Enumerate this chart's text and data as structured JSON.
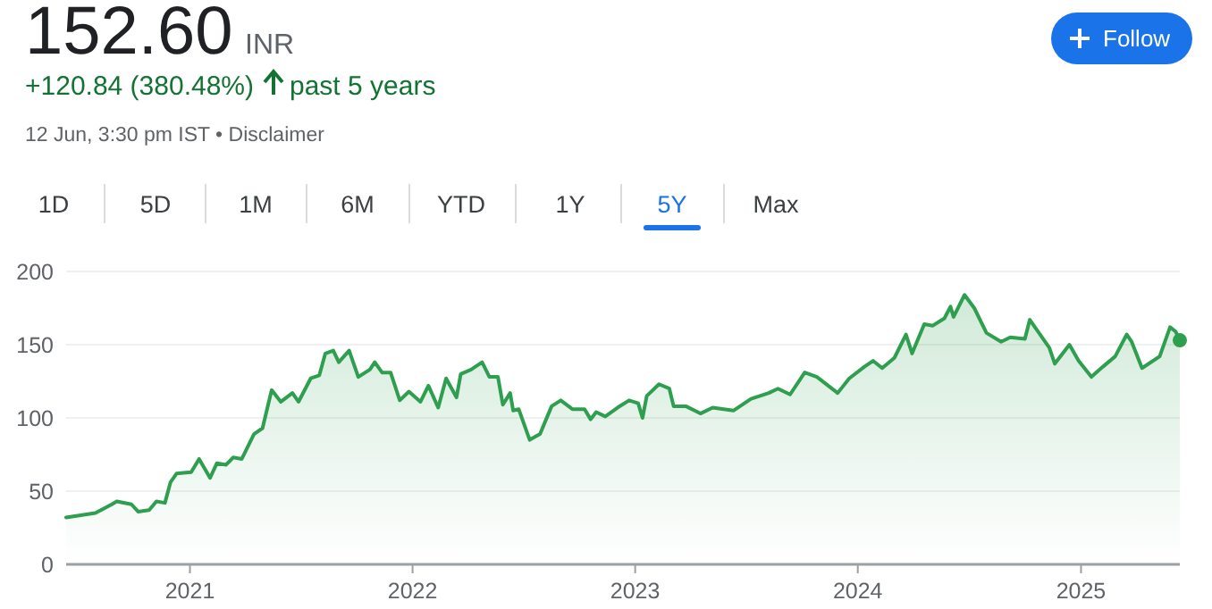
{
  "chart_data": {
    "type": "area",
    "title": "152.60",
    "subtitle": "+120.84 (380.48%)",
    "annotations": [
      "INR",
      "past 5 years",
      "12 Jun, 3:30 pm IST • Disclaimer",
      "Follow",
      "1D",
      "5D",
      "1M",
      "6M",
      "YTD",
      "1Y",
      "5Y",
      "Max"
    ],
    "x": [
      "2020-06-12",
      "2020-07-30",
      "2020-08-26",
      "2020-09-03",
      "2020-09-27",
      "2020-10-08",
      "2020-10-26",
      "2020-11-07",
      "2020-11-21",
      "2020-11-30",
      "2020-12-10",
      "2021-01-03",
      "2021-01-16",
      "2021-02-03",
      "2021-02-14",
      "2021-03-01",
      "2021-03-13",
      "2021-03-27",
      "2021-04-16",
      "2021-04-30",
      "2021-05-15",
      "2021-05-30",
      "2021-06-18",
      "2021-06-28",
      "2021-07-18",
      "2021-08-01",
      "2021-08-11",
      "2021-08-24",
      "2021-09-02",
      "2021-09-19",
      "2021-10-04",
      "2021-10-23",
      "2021-10-31",
      "2021-11-12",
      "2021-11-26",
      "2021-12-11",
      "2021-12-26",
      "2022-01-14",
      "2022-01-27",
      "2022-02-12",
      "2022-02-25",
      "2022-03-14",
      "2022-03-21",
      "2022-04-07",
      "2022-04-25",
      "2022-05-07",
      "2022-05-21",
      "2022-05-29",
      "2022-06-10",
      "2022-06-15",
      "2022-06-24",
      "2022-07-12",
      "2022-07-29",
      "2022-08-17",
      "2022-09-01",
      "2022-09-20",
      "2022-10-10",
      "2022-10-20",
      "2022-10-29",
      "2022-11-13",
      "2022-12-03",
      "2022-12-22",
      "2023-01-06",
      "2023-01-13",
      "2023-01-20",
      "2023-02-09",
      "2023-02-26",
      "2023-03-05",
      "2023-03-25",
      "2023-04-18",
      "2023-05-08",
      "2023-06-11",
      "2023-07-10",
      "2023-08-08",
      "2023-08-23",
      "2023-09-12",
      "2023-10-06",
      "2023-10-26",
      "2023-11-29",
      "2023-12-18",
      "2024-01-12",
      "2024-01-26",
      "2024-02-10",
      "2024-03-01",
      "2024-03-20",
      "2024-03-30",
      "2024-04-19",
      "2024-05-03",
      "2024-05-22",
      "2024-06-01",
      "2024-06-06",
      "2024-06-24",
      "2024-07-10",
      "2024-07-30",
      "2024-08-23",
      "2024-09-07",
      "2024-10-01",
      "2024-10-09",
      "2024-11-10",
      "2024-11-19",
      "2024-12-13",
      "2024-12-28",
      "2025-01-18",
      "2025-02-06",
      "2025-02-26",
      "2025-03-17",
      "2025-03-25",
      "2025-04-11",
      "2025-05-10",
      "2025-05-27",
      "2025-06-05",
      "2025-06-12"
    ],
    "series": [
      {
        "color": "#2e9e4f",
        "values": [
          32,
          35,
          41,
          43,
          41,
          36,
          37,
          43,
          42,
          56,
          62,
          63,
          72,
          59,
          69,
          68,
          73,
          72,
          89,
          93,
          119,
          111,
          117,
          111,
          127,
          129,
          144,
          146,
          138,
          146,
          128,
          133,
          138,
          131,
          131,
          112,
          118,
          111,
          122,
          107,
          127,
          114,
          130,
          133,
          138,
          128,
          128,
          109,
          117,
          105,
          106,
          85,
          89,
          108,
          112,
          106,
          106,
          99,
          104,
          101,
          107,
          112,
          110,
          100,
          115,
          123,
          120,
          108,
          108,
          103,
          107,
          105,
          113,
          117,
          120,
          116,
          131,
          128,
          117,
          127,
          135,
          139,
          134,
          141,
          157,
          144,
          164,
          163,
          168,
          176,
          169,
          184,
          175,
          158,
          152,
          155,
          154,
          167,
          148,
          137,
          150,
          139,
          128,
          135,
          142,
          157,
          152,
          134,
          142,
          162,
          159,
          153
        ]
      }
    ],
    "xlim": [
      "2020-06-12",
      "2025-06-12"
    ],
    "xticks": [
      {
        "value": "2021-01-01",
        "label": "2021"
      },
      {
        "value": "2022-01-01",
        "label": "2022"
      },
      {
        "value": "2023-01-01",
        "label": "2023"
      },
      {
        "value": "2024-01-01",
        "label": "2024"
      },
      {
        "value": "2025-01-01",
        "label": "2025"
      }
    ],
    "ylim": [
      0,
      200
    ],
    "yticks": [
      0,
      50,
      100,
      150,
      200
    ],
    "grid": "y",
    "marker": "none"
  }
}
